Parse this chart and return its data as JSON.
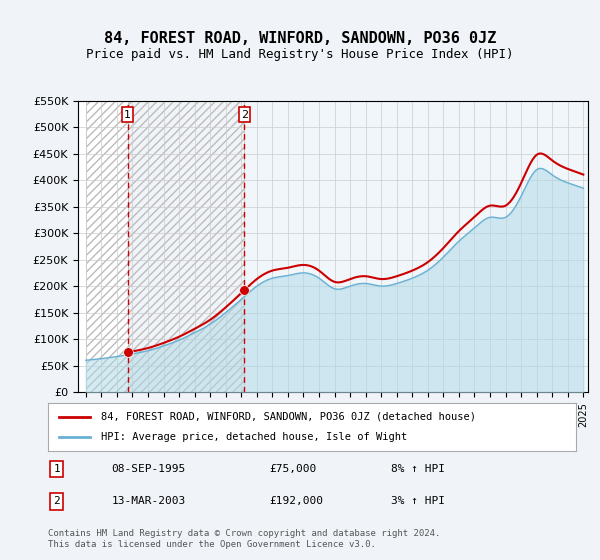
{
  "title": "84, FOREST ROAD, WINFORD, SANDOWN, PO36 0JZ",
  "subtitle": "Price paid vs. HM Land Registry's House Price Index (HPI)",
  "property_label": "84, FOREST ROAD, WINFORD, SANDOWN, PO36 0JZ (detached house)",
  "hpi_label": "HPI: Average price, detached house, Isle of Wight",
  "footer": "Contains HM Land Registry data © Crown copyright and database right 2024.\nThis data is licensed under the Open Government Licence v3.0.",
  "transaction1": {
    "num": 1,
    "date": "08-SEP-1995",
    "price": "£75,000",
    "hpi": "8% ↑ HPI"
  },
  "transaction2": {
    "num": 2,
    "date": "13-MAR-2003",
    "price": "£192,000",
    "hpi": "3% ↑ HPI"
  },
  "t1_year": 1995.69,
  "t1_price": 75000,
  "t2_year": 2003.2,
  "t2_price": 192000,
  "xmin": 1993,
  "xmax": 2025,
  "ymin": 0,
  "ymax": 550000,
  "yticks": [
    0,
    50000,
    100000,
    150000,
    200000,
    250000,
    300000,
    350000,
    400000,
    450000,
    500000,
    550000
  ],
  "ylabel_format": "£{0}K",
  "xticks": [
    1993,
    1994,
    1995,
    1996,
    1997,
    1998,
    1999,
    2000,
    2001,
    2002,
    2003,
    2004,
    2005,
    2006,
    2007,
    2008,
    2009,
    2010,
    2011,
    2012,
    2013,
    2014,
    2015,
    2016,
    2017,
    2018,
    2019,
    2020,
    2021,
    2022,
    2023,
    2024,
    2025
  ],
  "property_color": "#cc0000",
  "hpi_color": "#add8e6",
  "hpi_color_dark": "#6ab0d4",
  "grid_color": "#cccccc",
  "hatch_color": "#cccccc",
  "bg_color": "#f0f4f8",
  "plot_bg": "#ffffff",
  "dashed_line_color": "#cc0000",
  "marker_color": "#cc0000",
  "hpi_data_years": [
    1993,
    1994,
    1995,
    1996,
    1997,
    1998,
    1999,
    2000,
    2001,
    2002,
    2003,
    2004,
    2005,
    2006,
    2007,
    2008,
    2009,
    2010,
    2011,
    2012,
    2013,
    2014,
    2015,
    2016,
    2017,
    2018,
    2019,
    2020,
    2021,
    2022,
    2023,
    2024,
    2025
  ],
  "hpi_data_values": [
    60000,
    63000,
    67000,
    72000,
    78000,
    87000,
    98000,
    112000,
    128000,
    150000,
    175000,
    200000,
    215000,
    220000,
    225000,
    215000,
    195000,
    200000,
    205000,
    200000,
    205000,
    215000,
    230000,
    255000,
    285000,
    310000,
    330000,
    330000,
    370000,
    420000,
    410000,
    395000,
    385000
  ],
  "property_data_years": [
    1993,
    1995.69,
    2003.2,
    2024.5
  ],
  "property_data_values": [
    60000,
    75000,
    192000,
    395000
  ]
}
